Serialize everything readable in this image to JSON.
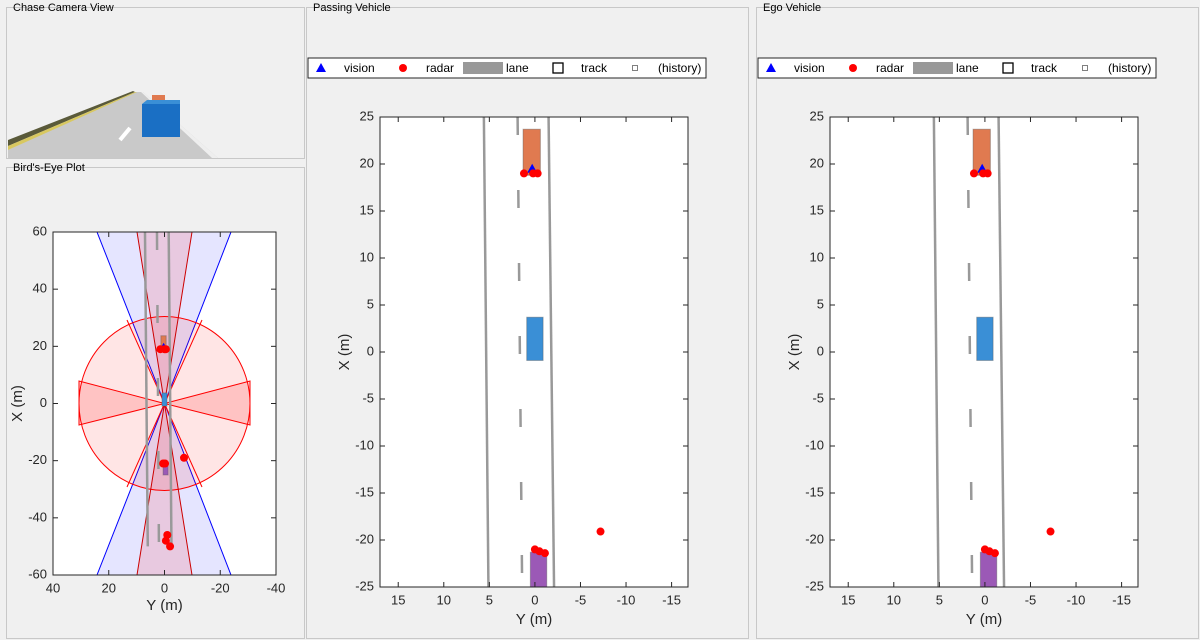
{
  "camera_view": {
    "title": "Chase Camera View"
  },
  "chart_data": [
    {
      "type": "scatter",
      "title": "Bird's-Eye Plot",
      "xlabel": "X (m)",
      "ylabel": "Y (m)",
      "xlim": [
        -60,
        60
      ],
      "xticks": [
        -60,
        -40,
        -20,
        0,
        20,
        40,
        60
      ],
      "ylim": [
        40,
        -40
      ],
      "yticks": [
        40,
        20,
        0,
        -20,
        -40
      ],
      "legend": false,
      "lanes": {
        "color": "#999999",
        "lines": [
          {
            "x": [
              60,
              -50
            ],
            "y": [
              7,
              6
            ],
            "style": "solid"
          },
          {
            "x": [
              60,
              -50
            ],
            "y": [
              -1.5,
              -2.5
            ],
            "style": "solid"
          },
          {
            "x": [
              60,
              -50
            ],
            "y": [
              2.7,
              2
            ],
            "style": "dashed"
          }
        ]
      },
      "vehicles": [
        {
          "color": "#e07a50",
          "x": [
            18.8,
            23.7
          ],
          "y": [
            1.3,
            -0.6
          ]
        },
        {
          "color": "#3a8fd6",
          "x": [
            -0.9,
            3.7
          ],
          "y": [
            0.9,
            -0.9
          ]
        },
        {
          "color": "#9b59b6",
          "x": [
            -25,
            -21.3
          ],
          "y": [
            0.5,
            -1.3
          ]
        }
      ],
      "series": [
        {
          "color": "#0000ff",
          "marker": "triangle",
          "x": [
            19.5
          ],
          "y": [
            0.3
          ]
        },
        {
          "color": "#ff0000",
          "marker": "circle",
          "x": [
            19,
            19,
            19,
            -21,
            -21,
            -19,
            -46,
            -48,
            -50
          ],
          "y": [
            1.5,
            0,
            -0.5,
            -0.2,
            0.5,
            -7,
            -1,
            -0.5,
            -2
          ]
        }
      ]
    },
    {
      "type": "scatter",
      "title": "Passing Vehicle",
      "xlabel": "X (m)",
      "ylabel": "Y (m)",
      "xlim": [
        -25,
        25
      ],
      "xticks": [
        -25,
        -20,
        -15,
        -10,
        -5,
        0,
        5,
        10,
        15,
        20,
        25
      ],
      "ylim": [
        17,
        -16.8
      ],
      "yticks": [
        15,
        10,
        5,
        0,
        -5,
        -10,
        -15
      ],
      "legend": true,
      "lanes": {
        "name": "lane",
        "color": "#999999",
        "lines": [
          {
            "x": [
              25,
              -25
            ],
            "y": [
              5.6,
              5.1
            ],
            "style": "solid"
          },
          {
            "x": [
              25,
              -25
            ],
            "y": [
              -1.5,
              -2.1
            ],
            "style": "solid"
          },
          {
            "x": [
              25,
              -25
            ],
            "y": [
              1.9,
              1.4
            ],
            "style": "dashed"
          }
        ]
      },
      "vehicles": [
        {
          "color": "#e07a50",
          "x": [
            18.8,
            23.7
          ],
          "y": [
            1.3,
            -0.6
          ]
        },
        {
          "color": "#3a8fd6",
          "x": [
            -0.9,
            3.7
          ],
          "y": [
            0.9,
            -0.9
          ]
        },
        {
          "color": "#9b59b6",
          "x": [
            -25,
            -21.3
          ],
          "y": [
            0.5,
            -1.3
          ]
        }
      ],
      "series": [
        {
          "name": "vision",
          "color": "#0000ff",
          "marker": "triangle",
          "x": [
            19.5
          ],
          "y": [
            0.3
          ]
        },
        {
          "name": "radar",
          "color": "#ff0000",
          "marker": "circle",
          "x": [
            19,
            19,
            19,
            -19.1,
            -21,
            -21.2,
            -21.4
          ],
          "y": [
            1.2,
            0.2,
            -0.3,
            -7.2,
            0,
            -0.5,
            -1.1
          ]
        },
        {
          "name": "track",
          "color": "#000000",
          "marker": "square",
          "x": [],
          "y": []
        },
        {
          "name": "(history)",
          "color": "#808080",
          "marker": "small-square",
          "x": [],
          "y": []
        }
      ]
    },
    {
      "type": "scatter",
      "title": "Ego Vehicle",
      "xlabel": "X (m)",
      "ylabel": "Y (m)",
      "xlim": [
        -25,
        25
      ],
      "xticks": [
        -25,
        -20,
        -15,
        -10,
        -5,
        0,
        5,
        10,
        15,
        20,
        25
      ],
      "ylim": [
        17,
        -16.8
      ],
      "yticks": [
        15,
        10,
        5,
        0,
        -5,
        -10,
        -15
      ],
      "legend": true,
      "lanes": {
        "name": "lane",
        "color": "#999999",
        "lines": [
          {
            "x": [
              25,
              -25
            ],
            "y": [
              5.6,
              5.1
            ],
            "style": "solid"
          },
          {
            "x": [
              25,
              -25
            ],
            "y": [
              -1.5,
              -2.1
            ],
            "style": "solid"
          },
          {
            "x": [
              25,
              -25
            ],
            "y": [
              1.9,
              1.4
            ],
            "style": "dashed"
          }
        ]
      },
      "vehicles": [
        {
          "color": "#e07a50",
          "x": [
            18.8,
            23.7
          ],
          "y": [
            1.3,
            -0.6
          ]
        },
        {
          "color": "#3a8fd6",
          "x": [
            -0.9,
            3.7
          ],
          "y": [
            0.9,
            -0.9
          ]
        },
        {
          "color": "#9b59b6",
          "x": [
            -25,
            -21.3
          ],
          "y": [
            0.5,
            -1.3
          ]
        }
      ],
      "series": [
        {
          "name": "vision",
          "color": "#0000ff",
          "marker": "triangle",
          "x": [
            19.5
          ],
          "y": [
            0.3
          ]
        },
        {
          "name": "radar",
          "color": "#ff0000",
          "marker": "circle",
          "x": [
            19,
            19,
            19,
            -19.1,
            -21,
            -21.2,
            -21.4
          ],
          "y": [
            1.2,
            0.2,
            -0.3,
            -7.2,
            0,
            -0.5,
            -1.1
          ]
        },
        {
          "name": "track",
          "color": "#000000",
          "marker": "square",
          "x": [],
          "y": []
        },
        {
          "name": "(history)",
          "color": "#808080",
          "marker": "small-square",
          "x": [],
          "y": []
        }
      ]
    }
  ]
}
